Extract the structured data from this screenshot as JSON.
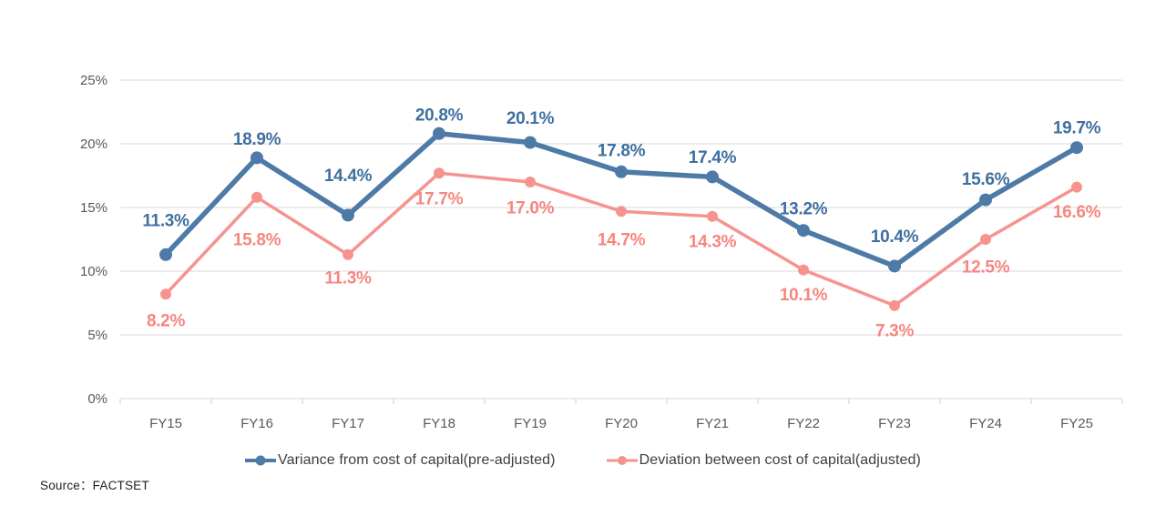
{
  "chart_data": {
    "type": "line",
    "categories": [
      "FY15",
      "FY16",
      "FY17",
      "FY18",
      "FY19",
      "FY20",
      "FY21",
      "FY22",
      "FY23",
      "FY24",
      "FY25"
    ],
    "series": [
      {
        "name": "Variance from cost of capital(pre-adjusted)",
        "values": [
          11.3,
          18.9,
          14.4,
          20.8,
          20.1,
          17.8,
          17.4,
          13.2,
          10.4,
          15.6,
          19.7
        ],
        "data_labels": [
          "11.3%",
          "18.9%",
          "14.4%",
          "20.8%",
          "20.1%",
          "17.8%",
          "17.4%",
          "13.2%",
          "10.4%",
          "15.6%",
          "19.7%"
        ],
        "color": "#4d7aa6",
        "label_color": "#3e6f9f",
        "label_placement": "above"
      },
      {
        "name": "Deviation between cost of capital(adjusted)",
        "values": [
          8.2,
          15.8,
          11.3,
          17.7,
          17.0,
          14.7,
          14.3,
          10.1,
          7.3,
          12.5,
          16.6
        ],
        "data_labels": [
          "8.2%",
          "15.8%",
          "11.3%",
          "17.7%",
          "17.0%",
          "14.7%",
          "14.3%",
          "10.1%",
          "7.3%",
          "12.5%",
          "16.6%"
        ],
        "color": "#f7938f",
        "label_color": "#f6867f",
        "label_placement": "below"
      }
    ],
    "title": "",
    "xlabel": "",
    "ylabel": "",
    "ylim": [
      0,
      25
    ],
    "ytick_step": 5,
    "ytick_labels": [
      "0%",
      "5%",
      "10%",
      "15%",
      "20%",
      "25%"
    ],
    "grid": "horizontal-only",
    "legend_position": "bottom",
    "colors": {
      "gridline": "#d9d9d9",
      "axis_line": "#d2d2d2",
      "tick_mark": "#cfcfcf",
      "axis_text": "#595959"
    }
  },
  "source": {
    "text": "Source：FACTSET"
  }
}
